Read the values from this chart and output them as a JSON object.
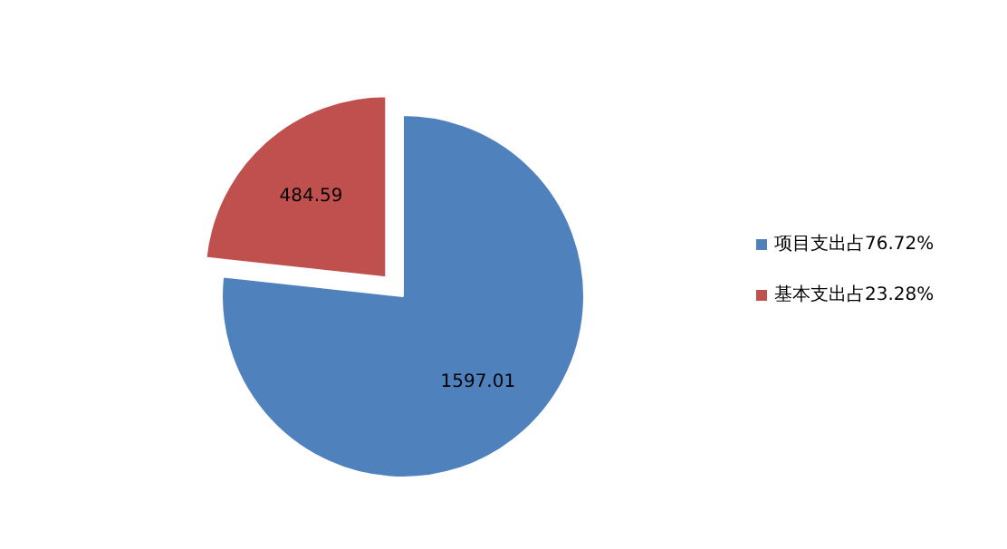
{
  "chart_data": {
    "type": "pie",
    "categories": [
      "项目支出占76.72%",
      "基本支出占23.28%"
    ],
    "values": [
      1597.01,
      484.59
    ],
    "colors": [
      "#4f81bd",
      "#c0504d"
    ],
    "data_labels": true,
    "legend": "right"
  }
}
